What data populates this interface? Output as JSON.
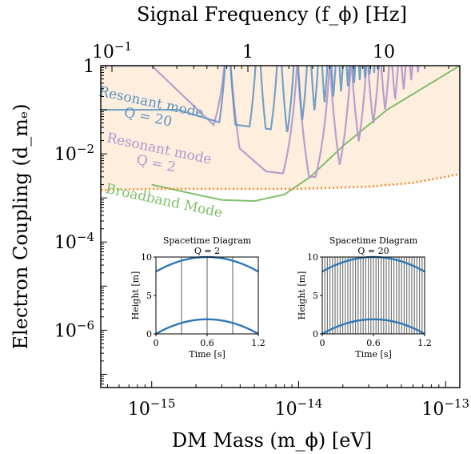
{
  "chart_data": [
    {
      "type": "line",
      "xlabel": "DM Mass (m_ϕ) [eV]",
      "ylabel": "Electron Coupling (d_mₑ)",
      "top_xlabel": "Signal Frequency (f_ϕ) [Hz]",
      "xscale": "log",
      "yscale": "log",
      "xlim": [
        4.5e-16,
        1.25e-13
      ],
      "ylim": [
        5e-08,
        1
      ],
      "xticks": [
        {
          "value": 1e-15,
          "label": "10^-15"
        },
        {
          "value": 1e-14,
          "label": "10^-14"
        },
        {
          "value": 1e-13,
          "label": "10^-13"
        }
      ],
      "yticks": [
        {
          "value": 1,
          "label": "1"
        },
        {
          "value": 0.01,
          "label": "10^-2"
        },
        {
          "value": 0.0001,
          "label": "10^-4"
        },
        {
          "value": 1e-06,
          "label": "10^-6"
        }
      ],
      "top_xticks": [
        {
          "value": 0.1,
          "label": "10^-1"
        },
        {
          "value": 1,
          "label": "1"
        },
        {
          "value": 10,
          "label": "10"
        }
      ],
      "shaded_region": {
        "color": "#fdeede"
      },
      "series": [
        {
          "name": "Resonant mode Q = 20",
          "label_lines": [
            "Resonant mode",
            "Q = 20"
          ],
          "color": "#5b93c2",
          "floor": [
            [
              4.5e-16,
              0.1
            ],
            [
              1.5e-15,
              0.1
            ],
            [
              3e-15,
              0.05
            ],
            [
              1e-14,
              0.03
            ],
            [
              3.5e-14,
              0.018
            ],
            [
              1.25e-13,
              0.05
            ]
          ],
          "resonances": [
            3.3e-15,
            5.3e-15,
            7.4e-15,
            9.6e-15,
            1.18e-14,
            1.4e-14,
            1.62e-14,
            1.84e-14,
            2.06e-14,
            2.28e-14,
            2.5e-14,
            2.72e-14,
            2.94e-14,
            3.16e-14,
            3.38e-14,
            3.6e-14,
            3.82e-14,
            4.04e-14,
            4.26e-14,
            4.48e-14,
            4.7e-14,
            4.92e-14,
            5.14e-14,
            5.36e-14,
            5.58e-14,
            5.8e-14,
            6.02e-14,
            6.24e-14,
            6.46e-14,
            6.68e-14,
            6.9e-14,
            7.12e-14,
            7.34e-14,
            7.56e-14,
            7.78e-14,
            8e-14,
            8.22e-14,
            8.44e-14,
            8.66e-14,
            8.88e-14,
            9.1e-14,
            9.32e-14,
            9.54e-14,
            9.76e-14,
            9.98e-14,
            1.02e-13,
            1.042e-13,
            1.064e-13,
            1.086e-13,
            1.108e-13,
            1.13e-13,
            1.152e-13,
            1.174e-13,
            1.196e-13,
            1.218e-13,
            1.24e-13
          ],
          "width": 0.05
        },
        {
          "name": "Resonant mode Q = 2",
          "label_lines": [
            "Resonant mode",
            "Q = 2"
          ],
          "color": "#b195cc",
          "floor": [
            [
              4.5e-16,
              1.0
            ],
            [
              1e-15,
              1.0
            ],
            [
              3e-15,
              0.03
            ],
            [
              6e-15,
              0.004
            ],
            [
              1.2e-14,
              0.003
            ],
            [
              2e-14,
              0.003
            ],
            [
              5e-14,
              0.01
            ],
            [
              1.25e-13,
              0.06
            ]
          ],
          "resonances": [
            3.3e-15,
            9.8e-15,
            1.63e-14,
            2.28e-14,
            2.93e-14,
            3.58e-14,
            4.23e-14,
            4.88e-14,
            5.53e-14,
            6.18e-14,
            6.83e-14,
            7.48e-14,
            8.13e-14,
            8.78e-14,
            9.43e-14,
            1.008e-13,
            1.073e-13,
            1.138e-13,
            1.203e-13
          ],
          "width": 0.08
        },
        {
          "name": "Broadband Mode",
          "label_lines": [
            "Broadband Mode"
          ],
          "color": "#7fbf6a",
          "floor": [
            [
              1e-15,
              0.002
            ],
            [
              2e-15,
              0.0012
            ],
            [
              3e-15,
              0.0009
            ],
            [
              5e-15,
              0.00085
            ],
            [
              8e-15,
              0.0012
            ],
            [
              1.2e-14,
              0.003
            ],
            [
              2e-14,
              0.015
            ],
            [
              4e-14,
              0.1
            ],
            [
              1.25e-13,
              1.0
            ]
          ]
        },
        {
          "name": "dotted limit",
          "color": "#f08a2c",
          "style": "dotted",
          "points": [
            [
              4.5e-16,
              0.0015
            ],
            [
              1e-15,
              0.0016
            ],
            [
              3e-15,
              0.0016
            ],
            [
              1e-14,
              0.0016
            ],
            [
              3e-14,
              0.0018
            ],
            [
              6e-14,
              0.0022
            ],
            [
              1e-13,
              0.003
            ],
            [
              1.25e-13,
              0.0035
            ]
          ]
        }
      ]
    },
    {
      "type": "line",
      "title_lines": [
        "Spacetime Diagram",
        "Q = 2"
      ],
      "xlabel": "Time [s]",
      "ylabel": "Height [m]",
      "xlim": [
        0,
        1.2
      ],
      "ylim": [
        0,
        10
      ],
      "xticks": [
        0,
        0.6,
        1.2
      ],
      "xtick_labels": [
        "0",
        "0.6",
        "1.2"
      ],
      "yticks": [
        0,
        5,
        10
      ],
      "ytick_labels": [
        "0",
        "5",
        "10"
      ],
      "vertical_lines": [
        0.3,
        0.6,
        0.9
      ],
      "series": [
        {
          "name": "upper",
          "color": "#2f78b6",
          "base": 10,
          "amplitude": 1.9
        },
        {
          "name": "lower",
          "color": "#2f78b6",
          "base": 0,
          "amplitude": 1.9
        }
      ]
    },
    {
      "type": "line",
      "title_lines": [
        "Spacetime Diagram",
        "Q = 20"
      ],
      "xlabel": "Time [s]",
      "ylabel": "Height [m]",
      "xlim": [
        0,
        1.2
      ],
      "ylim": [
        0,
        10
      ],
      "xticks": [
        0,
        0.6,
        1.2
      ],
      "xtick_labels": [
        "0",
        "0.6",
        "1.2"
      ],
      "yticks": [
        0,
        5,
        10
      ],
      "ytick_labels": [
        "0",
        "5",
        "10"
      ],
      "vertical_line_count": 40,
      "series": [
        {
          "name": "upper",
          "color": "#2f78b6",
          "base": 10,
          "amplitude": 1.9
        },
        {
          "name": "lower",
          "color": "#2f78b6",
          "base": 0,
          "amplitude": 1.9
        }
      ]
    }
  ]
}
